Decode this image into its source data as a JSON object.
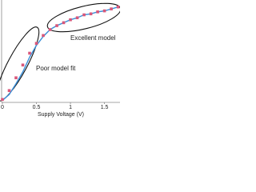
{
  "chart_data": {
    "type": "line",
    "x_label": "Supply Voltage (V)",
    "x": [
      0,
      0.1,
      0.2,
      0.3,
      0.4,
      0.5,
      0.6,
      0.7,
      0.8,
      0.9,
      1.0,
      1.1,
      1.2,
      1.3,
      1.4,
      1.5,
      1.6,
      1.7
    ],
    "series": [
      {
        "color": "#3a8fd8",
        "style": "line",
        "values": [
          0.02,
          0.08,
          0.19,
          0.31,
          0.46,
          0.58,
          0.67,
          0.74,
          0.78,
          0.81,
          0.84,
          0.86,
          0.89,
          0.9,
          0.92,
          0.93,
          0.95,
          0.97
        ]
      },
      {
        "color": "#d9577a",
        "style": "marker",
        "values": [
          0.03,
          0.12,
          0.25,
          0.38,
          0.5,
          0.6,
          0.68,
          0.74,
          0.78,
          0.81,
          0.84,
          0.86,
          0.89,
          0.9,
          0.92,
          0.93,
          0.95,
          0.97
        ]
      }
    ],
    "xlim": [
      0,
      1.74
    ],
    "ylim": [
      0,
      1
    ],
    "xticks": [
      0,
      0.5,
      1,
      1.5
    ],
    "annotations": [
      "Excellent model",
      "Poor model fit"
    ],
    "grid": false
  }
}
